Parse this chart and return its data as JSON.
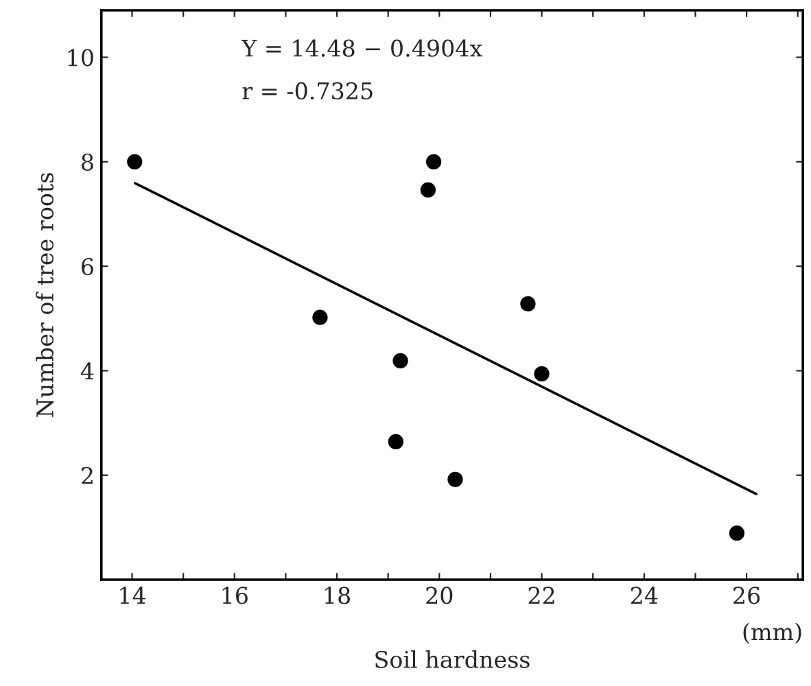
{
  "chart_data": {
    "type": "scatter",
    "xlabel": "Soil hardness",
    "ylabel": "Number of tree roots",
    "xlim": [
      13.4,
      27.1
    ],
    "ylim": [
      0,
      10.9
    ],
    "xticks": [
      {
        "value": 14,
        "label": "14"
      },
      {
        "value": 15,
        "label": null
      },
      {
        "value": 16,
        "label": "16"
      },
      {
        "value": 17,
        "label": null
      },
      {
        "value": 18,
        "label": "18"
      },
      {
        "value": 19,
        "label": null
      },
      {
        "value": 20,
        "label": "20"
      },
      {
        "value": 21,
        "label": null
      },
      {
        "value": 22,
        "label": "22"
      },
      {
        "value": 23,
        "label": null
      },
      {
        "value": 24,
        "label": "24"
      },
      {
        "value": 25,
        "label": null
      },
      {
        "value": 26,
        "label": "26"
      },
      {
        "value": 27,
        "label": null
      }
    ],
    "yticks": [
      2,
      4,
      6,
      8,
      10
    ],
    "grid": false,
    "legend": false,
    "series": [
      {
        "marker": "circle",
        "color": "#000000",
        "x": [
          14.05,
          19.89,
          19.78,
          17.67,
          21.73,
          19.24,
          22.0,
          19.15,
          20.31,
          25.81
        ],
        "values": [
          8.0,
          8.0,
          7.46,
          5.02,
          5.28,
          4.19,
          3.94,
          2.64,
          1.92,
          0.89
        ]
      },
      {
        "type": "line",
        "marker": "none",
        "color": "#000000",
        "x": [
          14.06,
          26.19
        ],
        "values": [
          7.59,
          1.64
        ]
      }
    ],
    "annotations": [
      "Y = 14.48 − 0.4904x",
      "r = -0.7325",
      "(mm)"
    ]
  }
}
